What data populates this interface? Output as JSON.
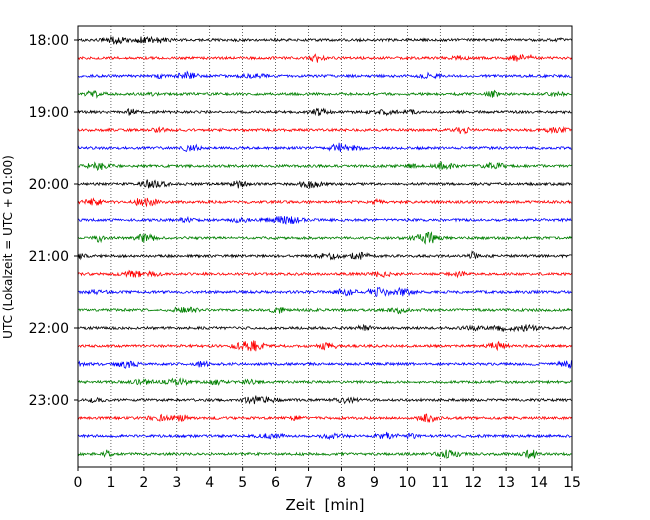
{
  "chart_data": {
    "type": "line",
    "title": "",
    "xlabel": "Zeit  [min]",
    "ylabel": "UTC (Lokalzeit = UTC + 01:00)",
    "xlim": [
      0,
      15
    ],
    "x_ticks": [
      "0",
      "1",
      "2",
      "3",
      "4",
      "5",
      "6",
      "7",
      "8",
      "9",
      "10",
      "11",
      "12",
      "13",
      "14",
      "15"
    ],
    "y_tick_labels": [
      "18:00",
      "19:00",
      "20:00",
      "21:00",
      "22:00",
      "23:00"
    ],
    "grid": "vertical dotted lines at each minute",
    "row_interval_minutes": 15,
    "trace_colors_cycle": [
      "#000000",
      "#ff0000",
      "#0000ff",
      "#008000"
    ],
    "traces": [
      {
        "start": "18:00",
        "color": "#000000"
      },
      {
        "start": "18:15",
        "color": "#ff0000"
      },
      {
        "start": "18:30",
        "color": "#0000ff"
      },
      {
        "start": "18:45",
        "color": "#008000"
      },
      {
        "start": "19:00",
        "color": "#000000"
      },
      {
        "start": "19:15",
        "color": "#ff0000"
      },
      {
        "start": "19:30",
        "color": "#0000ff"
      },
      {
        "start": "19:45",
        "color": "#008000"
      },
      {
        "start": "20:00",
        "color": "#000000"
      },
      {
        "start": "20:15",
        "color": "#ff0000"
      },
      {
        "start": "20:30",
        "color": "#0000ff"
      },
      {
        "start": "20:45",
        "color": "#008000"
      },
      {
        "start": "21:00",
        "color": "#000000"
      },
      {
        "start": "21:15",
        "color": "#ff0000"
      },
      {
        "start": "21:30",
        "color": "#0000ff"
      },
      {
        "start": "21:45",
        "color": "#008000"
      },
      {
        "start": "22:00",
        "color": "#000000"
      },
      {
        "start": "22:15",
        "color": "#ff0000"
      },
      {
        "start": "22:30",
        "color": "#0000ff"
      },
      {
        "start": "22:45",
        "color": "#008000"
      },
      {
        "start": "23:00",
        "color": "#000000"
      },
      {
        "start": "23:15",
        "color": "#ff0000"
      },
      {
        "start": "23:30",
        "color": "#0000ff"
      },
      {
        "start": "23:45",
        "color": "#008000"
      }
    ]
  }
}
